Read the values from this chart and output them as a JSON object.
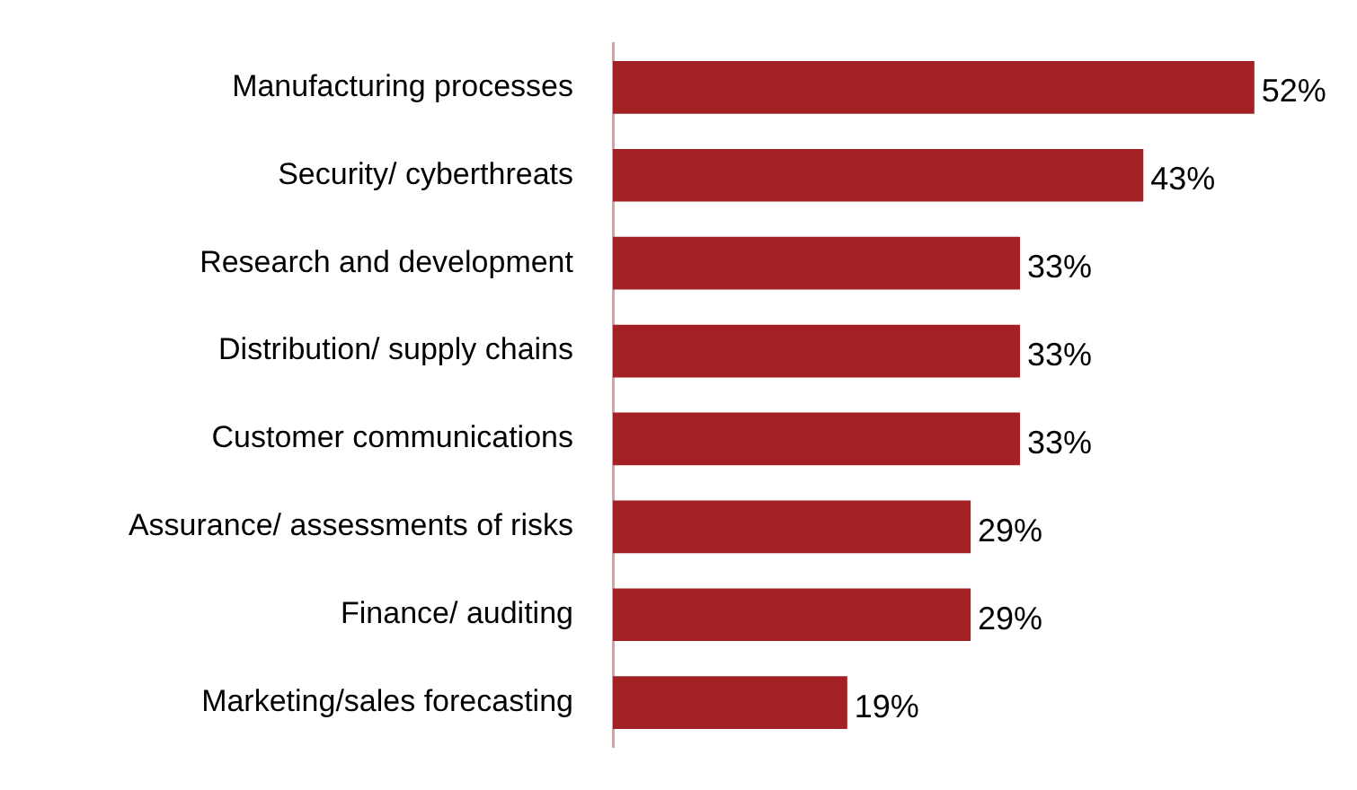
{
  "chart_data": {
    "type": "bar",
    "orientation": "horizontal",
    "categories": [
      "Manufacturing processes",
      "Security/ cyberthreats",
      "Research and development",
      "Distribution/ supply chains",
      "Customer communications",
      "Assurance/ assessments of risks",
      "Finance/ auditing",
      "Marketing/sales forecasting"
    ],
    "values": [
      52,
      43,
      33,
      33,
      33,
      29,
      29,
      19
    ],
    "value_labels": [
      "52%",
      "43%",
      "33%",
      "33%",
      "33%",
      "29%",
      "29%",
      "19%"
    ],
    "color": "#a32024"
  }
}
